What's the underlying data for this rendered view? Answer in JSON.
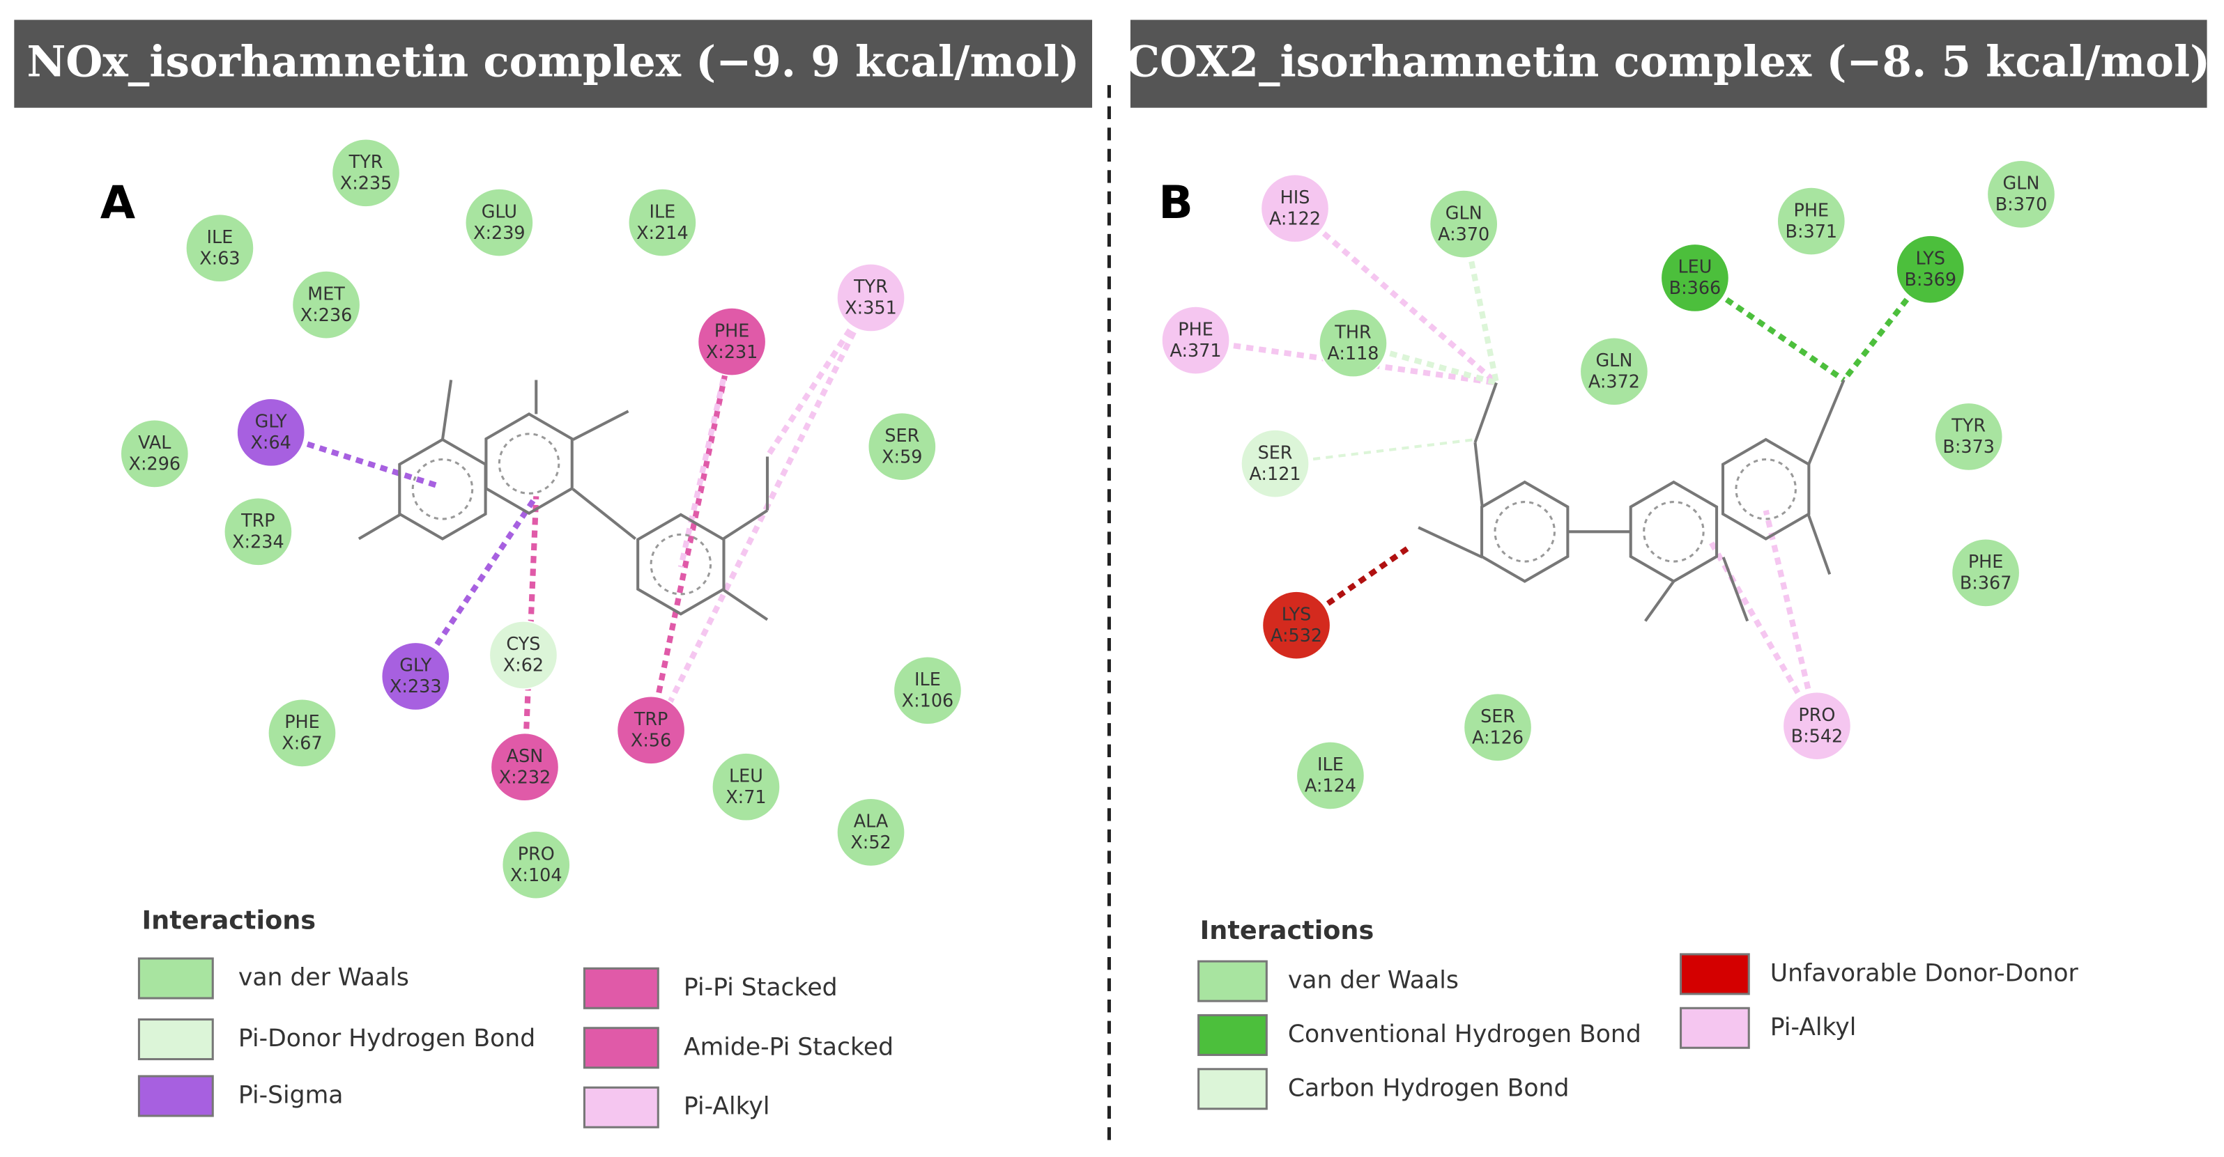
{
  "panels": [
    {
      "title": "NOx_isorhamnetin complex (−9. 9 kcal/mol)",
      "label": "A",
      "residues": [
        {
          "name": "TYR",
          "id": "X:235",
          "color": "#a8e4a0"
        },
        {
          "name": "ILE",
          "id": "X:63",
          "color": "#a8e4a0"
        },
        {
          "name": "GLU",
          "id": "X:239",
          "color": "#a8e4a0"
        },
        {
          "name": "ILE",
          "id": "X:214",
          "color": "#a8e4a0"
        },
        {
          "name": "MET",
          "id": "X:236",
          "color": "#a8e4a0"
        },
        {
          "name": "TYR",
          "id": "X:351",
          "color": "#f5c6f0"
        },
        {
          "name": "PHE",
          "id": "X:231",
          "color": "#e05aa8"
        },
        {
          "name": "GLY",
          "id": "X:64",
          "color": "#a760e0"
        },
        {
          "name": "VAL",
          "id": "X:296",
          "color": "#a8e4a0"
        },
        {
          "name": "SER",
          "id": "X:59",
          "color": "#a8e4a0"
        },
        {
          "name": "TRP",
          "id": "X:234",
          "color": "#a8e4a0"
        },
        {
          "name": "CYS",
          "id": "X:62",
          "color": "#dcf5d8"
        },
        {
          "name": "GLY",
          "id": "X:233",
          "color": "#a760e0"
        },
        {
          "name": "ILE",
          "id": "X:106",
          "color": "#a8e4a0"
        },
        {
          "name": "PHE",
          "id": "X:67",
          "color": "#a8e4a0"
        },
        {
          "name": "TRP",
          "id": "X:56",
          "color": "#e05aa8"
        },
        {
          "name": "ASN",
          "id": "X:232",
          "color": "#e05aa8"
        },
        {
          "name": "LEU",
          "id": "X:71",
          "color": "#a8e4a0"
        },
        {
          "name": "ALA",
          "id": "X:52",
          "color": "#a8e4a0"
        },
        {
          "name": "PRO",
          "id": "X:104",
          "color": "#a8e4a0"
        }
      ],
      "legend": {
        "title": "Interactions",
        "items": [
          {
            "label": "van der Waals",
            "color": "#a8e4a0"
          },
          {
            "label": "Pi-Donor Hydrogen Bond",
            "color": "#dcf5d8"
          },
          {
            "label": "Pi-Sigma",
            "color": "#a760e0"
          },
          {
            "label": "Pi-Pi Stacked",
            "color": "#e05aa8"
          },
          {
            "label": "Amide-Pi Stacked",
            "color": "#e05aa8"
          },
          {
            "label": "Pi-Alkyl",
            "color": "#f5c6f0"
          }
        ]
      }
    },
    {
      "title": "COX2_isorhamnetin complex (−8. 5 kcal/mol)",
      "label": "B",
      "residues": [
        {
          "name": "HIS",
          "id": "A:122",
          "color": "#f5c6f0"
        },
        {
          "name": "GLN",
          "id": "A:370",
          "color": "#a8e4a0"
        },
        {
          "name": "PHE",
          "id": "B:371",
          "color": "#a8e4a0"
        },
        {
          "name": "GLN",
          "id": "B:370",
          "color": "#a8e4a0"
        },
        {
          "name": "LEU",
          "id": "B:366",
          "color": "#4cbf3c"
        },
        {
          "name": "LYS",
          "id": "B:369",
          "color": "#4cbf3c"
        },
        {
          "name": "PHE",
          "id": "A:371",
          "color": "#f5c6f0"
        },
        {
          "name": "THR",
          "id": "A:118",
          "color": "#a8e4a0"
        },
        {
          "name": "GLN",
          "id": "A:372",
          "color": "#a8e4a0"
        },
        {
          "name": "SER",
          "id": "A:121",
          "color": "#dcf5d8"
        },
        {
          "name": "TYR",
          "id": "B:373",
          "color": "#a8e4a0"
        },
        {
          "name": "PHE",
          "id": "B:367",
          "color": "#a8e4a0"
        },
        {
          "name": "LYS",
          "id": "A:532",
          "color": "#d42a1e"
        },
        {
          "name": "SER",
          "id": "A:126",
          "color": "#a8e4a0"
        },
        {
          "name": "PRO",
          "id": "B:542",
          "color": "#f5c6f0"
        },
        {
          "name": "ILE",
          "id": "A:124",
          "color": "#a8e4a0"
        }
      ],
      "legend": {
        "title": "Interactions",
        "items": [
          {
            "label": "van der Waals",
            "color": "#a8e4a0"
          },
          {
            "label": "Conventional Hydrogen Bond",
            "color": "#4cbf3c"
          },
          {
            "label": "Carbon Hydrogen Bond",
            "color": "#dcf5d8"
          },
          {
            "label": "Unfavorable Donor-Donor",
            "color": "#d40000"
          },
          {
            "label": "Pi-Alkyl",
            "color": "#f5c6f0"
          }
        ]
      }
    }
  ]
}
